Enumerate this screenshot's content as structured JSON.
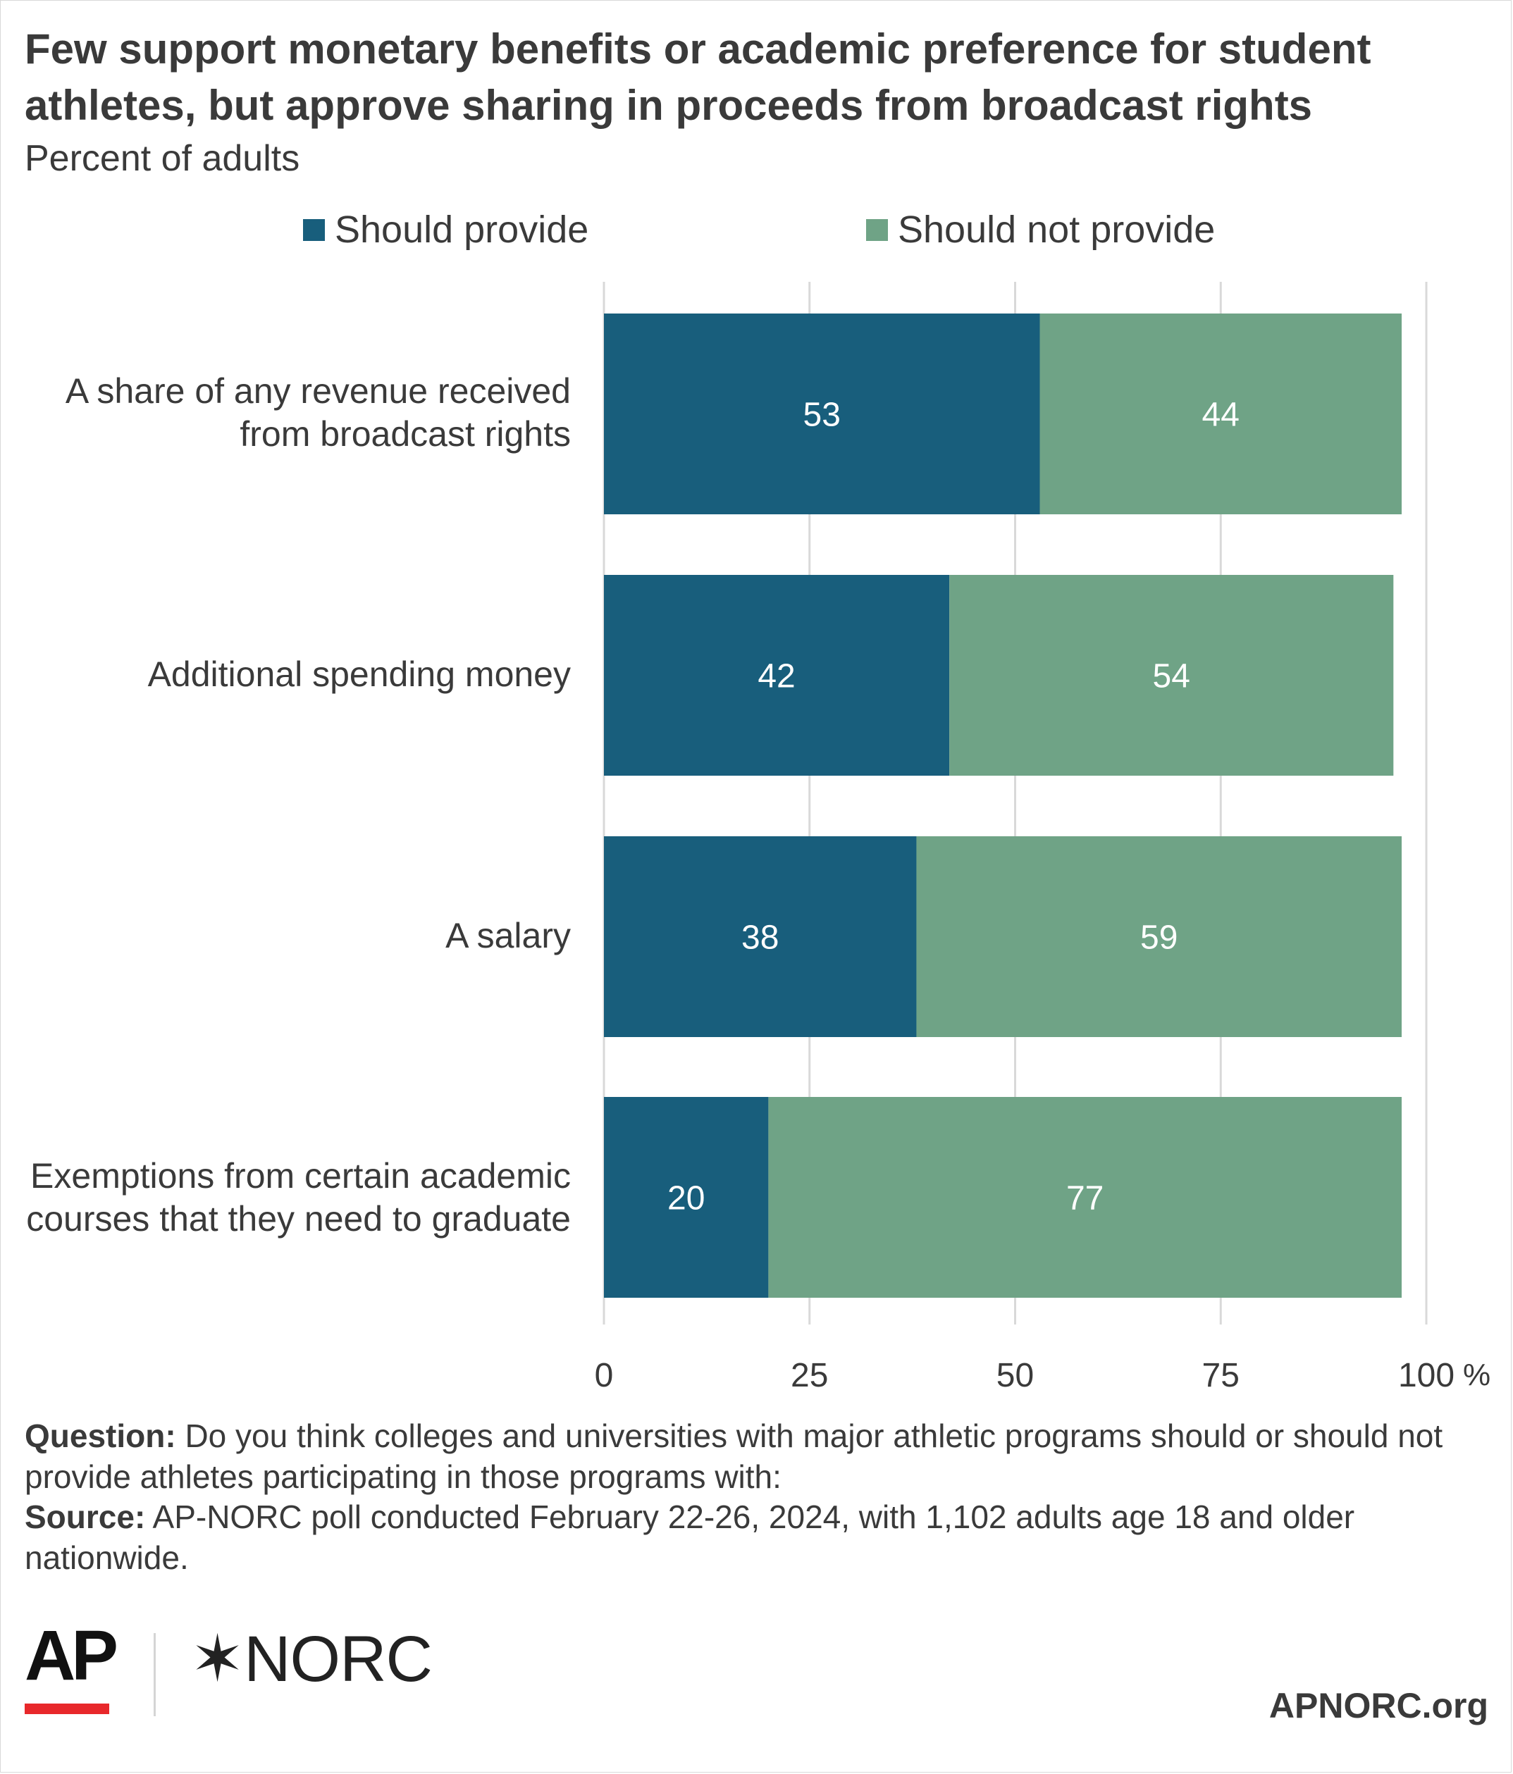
{
  "title": "Few support monetary benefits or academic preference for student athletes, but approve sharing in proceeds from broadcast rights",
  "subtitle": "Percent of adults",
  "chart_data": {
    "type": "bar",
    "orientation": "horizontal",
    "stacked": true,
    "categories": [
      "A share of any revenue received from broadcast rights",
      "Additional spending money",
      "A salary",
      "Exemptions from certain academic courses that they need to graduate"
    ],
    "series": [
      {
        "name": "Should provide",
        "color": "#185e7c",
        "values": [
          53,
          42,
          38,
          20
        ]
      },
      {
        "name": "Should not provide",
        "color": "#6fa386",
        "values": [
          44,
          54,
          59,
          77
        ]
      }
    ],
    "xlim": [
      0,
      100
    ],
    "xticks": [
      "0",
      "25",
      "50",
      "75",
      "100"
    ],
    "x_unit": "%",
    "grid": true,
    "legend_position": "top"
  },
  "notes": {
    "question_label": "Question:",
    "question_text": " Do you think colleges and universities with major athletic programs should or should not provide athletes participating in those programs with:",
    "source_label": "Source:",
    "source_text": " AP-NORC poll conducted February 22-26, 2024, with 1,102 adults age 18 and older nationwide."
  },
  "logos": {
    "ap": "AP",
    "norc_star": "✶",
    "norc": "NORC"
  },
  "site": "APNORC.org"
}
